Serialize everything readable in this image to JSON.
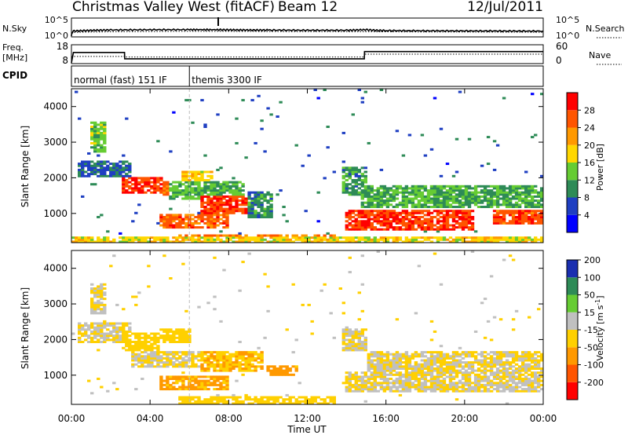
{
  "header": {
    "station": "Christmas Valley West (fitACF)",
    "beam": "Beam 12",
    "date": "12/Jul/2011"
  },
  "noise_panel": {
    "left_label": "N.Sky",
    "right_label": "N.Search",
    "y_ticks": [
      "10^5",
      "10^0"
    ]
  },
  "freq_panel": {
    "left_label_line1": "Freq.",
    "left_label_line2": "[MHz]",
    "right_label": "Nave",
    "left_ticks": [
      "18",
      "8"
    ],
    "right_ticks": [
      "60",
      "0"
    ]
  },
  "cpid": {
    "label": "CPID",
    "modes": [
      {
        "name": "normal (fast) 151 IF",
        "start_hour": 0,
        "end_hour": 6
      },
      {
        "name": "themis 3300 IF",
        "start_hour": 6,
        "end_hour": 24
      }
    ]
  },
  "time_axis": {
    "label": "Time UT",
    "ticks": [
      "00:00",
      "04:00",
      "08:00",
      "12:00",
      "16:00",
      "20:00",
      "00:00"
    ],
    "range_hours": [
      0,
      24
    ]
  },
  "colors": {
    "power": [
      "#0000ff",
      "#1f3fc2",
      "#2e8b57",
      "#66cc33",
      "#ffd700",
      "#ff9900",
      "#ff5500",
      "#ff0000"
    ],
    "velocity": [
      "#ff0000",
      "#ff5500",
      "#ff9900",
      "#ffd000",
      "#c0c0c0",
      "#66cc33",
      "#2e8b57",
      "#1a2fb0"
    ]
  },
  "chart_data": [
    {
      "type": "line",
      "panel": "noise",
      "series": [
        {
          "name": "N.Sky",
          "x": [
            0,
            0.1,
            1,
            2,
            4,
            6,
            7.5,
            8,
            9,
            10,
            12,
            14,
            15,
            15.5,
            16,
            18,
            20,
            22,
            24
          ],
          "y": [
            1,
            30,
            45,
            60,
            70,
            75,
            70,
            65,
            58,
            55,
            50,
            48,
            70,
            45,
            40,
            35,
            33,
            30,
            28
          ]
        },
        {
          "name": "N.Search",
          "x": [
            0,
            2,
            4,
            6,
            8,
            10,
            12,
            14,
            16,
            18,
            20,
            22,
            24
          ],
          "y": [
            12,
            18,
            22,
            25,
            24,
            22,
            20,
            19,
            18,
            16,
            15,
            14,
            13
          ]
        }
      ],
      "ylim": [
        "10^0",
        "10^5"
      ]
    },
    {
      "type": "line",
      "panel": "frequency",
      "series": [
        {
          "name": "Freq",
          "x": [
            0,
            0.1,
            2.7,
            2.71,
            14.9,
            14.91,
            24
          ],
          "y": [
            8,
            14,
            14,
            10.3,
            10.3,
            14.5,
            14.5
          ]
        },
        {
          "name": "Nave",
          "x": [
            0,
            2.7,
            2.71,
            14.9,
            14.91,
            24
          ],
          "y": [
            22,
            22,
            20,
            20,
            30,
            30
          ]
        }
      ],
      "left_ylim": [
        8,
        18
      ],
      "right_ylim": [
        0,
        60
      ]
    },
    {
      "type": "heatmap",
      "panel": "power",
      "xlabel": "",
      "ylabel": "Slant Range [km]",
      "ylim": [
        180,
        4500
      ],
      "y_ticks": [
        1000,
        2000,
        3000,
        4000
      ],
      "colorbar": {
        "label": "Power [dB]",
        "ticks": [
          4,
          8,
          12,
          16,
          20,
          24,
          28
        ],
        "range": [
          0,
          30
        ]
      },
      "regions": [
        {
          "t": [
            0.9,
            1.8
          ],
          "r": [
            2700,
            3600
          ],
          "value": 13
        },
        {
          "t": [
            0.3,
            3.0
          ],
          "r": [
            2000,
            2500
          ],
          "value": 7
        },
        {
          "t": [
            2.5,
            4.6
          ],
          "r": [
            1550,
            2000
          ],
          "value": 26
        },
        {
          "t": [
            4.6,
            5.6
          ],
          "r": [
            1500,
            1900
          ],
          "value": 23
        },
        {
          "t": [
            5.6,
            7.2
          ],
          "r": [
            1900,
            2200
          ],
          "value": 17
        },
        {
          "t": [
            5.0,
            8.8
          ],
          "r": [
            1400,
            1900
          ],
          "value": 12
        },
        {
          "t": [
            6.5,
            9.8
          ],
          "r": [
            1000,
            1500
          ],
          "value": 26
        },
        {
          "t": [
            4.5,
            8.0
          ],
          "r": [
            600,
            1000
          ],
          "value": 24
        },
        {
          "t": [
            9.0,
            10.2
          ],
          "r": [
            900,
            1600
          ],
          "value": 9
        },
        {
          "t": [
            5.5,
            13.5
          ],
          "r": [
            180,
            420
          ],
          "value": 23
        },
        {
          "t": [
            13.8,
            15.0
          ],
          "r": [
            1500,
            2300
          ],
          "value": 10
        },
        {
          "t": [
            14.0,
            20.5
          ],
          "r": [
            550,
            1100
          ],
          "value": 26
        },
        {
          "t": [
            14.8,
            24.0
          ],
          "r": [
            1150,
            1800
          ],
          "value": 11
        },
        {
          "t": [
            21.5,
            24.0
          ],
          "r": [
            700,
            1100
          ],
          "value": 25
        },
        {
          "t": [
            0.0,
            24.0
          ],
          "r": [
            180,
            330
          ],
          "value": 17
        }
      ]
    },
    {
      "type": "heatmap",
      "panel": "velocity",
      "xlabel": "Time UT",
      "ylabel": "Slant Range [km]",
      "ylim": [
        180,
        4500
      ],
      "y_ticks": [
        1000,
        2000,
        3000,
        4000
      ],
      "colorbar": {
        "label": "Velocity [m s^-1]",
        "ticks": [
          200,
          100,
          50,
          15,
          -15,
          -50,
          -100,
          -200
        ],
        "range": [
          -250,
          250
        ]
      },
      "regions": [
        {
          "t": [
            0.9,
            1.8
          ],
          "r": [
            2700,
            3600
          ],
          "value": 0
        },
        {
          "t": [
            0.3,
            3.0
          ],
          "r": [
            1900,
            2500
          ],
          "value": 0
        },
        {
          "t": [
            2.5,
            4.5
          ],
          "r": [
            1700,
            2200
          ],
          "value": -20
        },
        {
          "t": [
            4.5,
            6.0
          ],
          "r": [
            1900,
            2300
          ],
          "value": -40
        },
        {
          "t": [
            3.0,
            7.5
          ],
          "r": [
            1200,
            1700
          ],
          "value": 0
        },
        {
          "t": [
            6.5,
            9.8
          ],
          "r": [
            1100,
            1700
          ],
          "value": -60
        },
        {
          "t": [
            4.5,
            8.0
          ],
          "r": [
            600,
            1000
          ],
          "value": -70
        },
        {
          "t": [
            10.0,
            11.5
          ],
          "r": [
            1000,
            1300
          ],
          "value": -80
        },
        {
          "t": [
            5.5,
            13.5
          ],
          "r": [
            180,
            420
          ],
          "value": -30
        },
        {
          "t": [
            14.0,
            24.0
          ],
          "r": [
            550,
            1100
          ],
          "value": 0
        },
        {
          "t": [
            15.0,
            24.0
          ],
          "r": [
            1100,
            1700
          ],
          "value": 0
        },
        {
          "t": [
            13.8,
            15.0
          ],
          "r": [
            1700,
            2300
          ],
          "value": 0
        }
      ]
    }
  ]
}
